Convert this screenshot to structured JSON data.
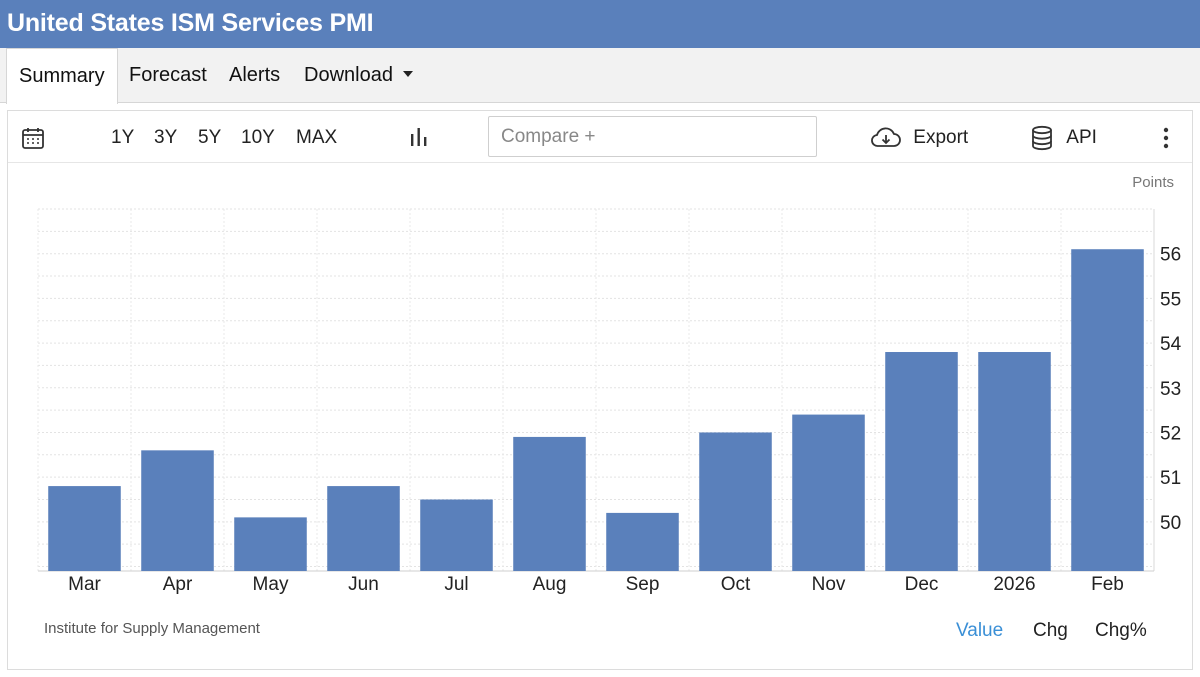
{
  "header": {
    "title": "United States ISM Services PMI"
  },
  "tabs": [
    {
      "label": "Summary",
      "active": true
    },
    {
      "label": "Forecast"
    },
    {
      "label": "Alerts"
    },
    {
      "label": "Download"
    }
  ],
  "toolbar": {
    "calendar_icon": "calendar-icon",
    "ranges": [
      "1Y",
      "3Y",
      "5Y",
      "10Y",
      "MAX"
    ],
    "chart_type_icon": "bar-chart-icon",
    "compare_placeholder": "Compare +",
    "export_label": "Export",
    "api_label": "API",
    "more_icon": "vertical-dots-icon"
  },
  "chart_data": {
    "type": "bar",
    "categories": [
      "Mar",
      "Apr",
      "May",
      "Jun",
      "Jul",
      "Aug",
      "Sep",
      "Oct",
      "Nov",
      "Dec",
      "2026",
      "Feb"
    ],
    "values": [
      50.8,
      51.6,
      50.1,
      50.8,
      50.5,
      51.9,
      50.2,
      52.0,
      52.4,
      53.8,
      53.8,
      56.1
    ],
    "ylabel": "Points",
    "yticks": [
      50,
      51,
      52,
      53,
      54,
      55,
      56
    ],
    "ylim": [
      48.9,
      57.0
    ],
    "bar_color": "#5a80bb",
    "grid": true
  },
  "footer": {
    "source": "Institute for Supply Management",
    "modes": [
      {
        "label": "Value",
        "active": true,
        "color": "#3a8fd6"
      },
      {
        "label": "Chg"
      },
      {
        "label": "Chg%"
      }
    ]
  }
}
